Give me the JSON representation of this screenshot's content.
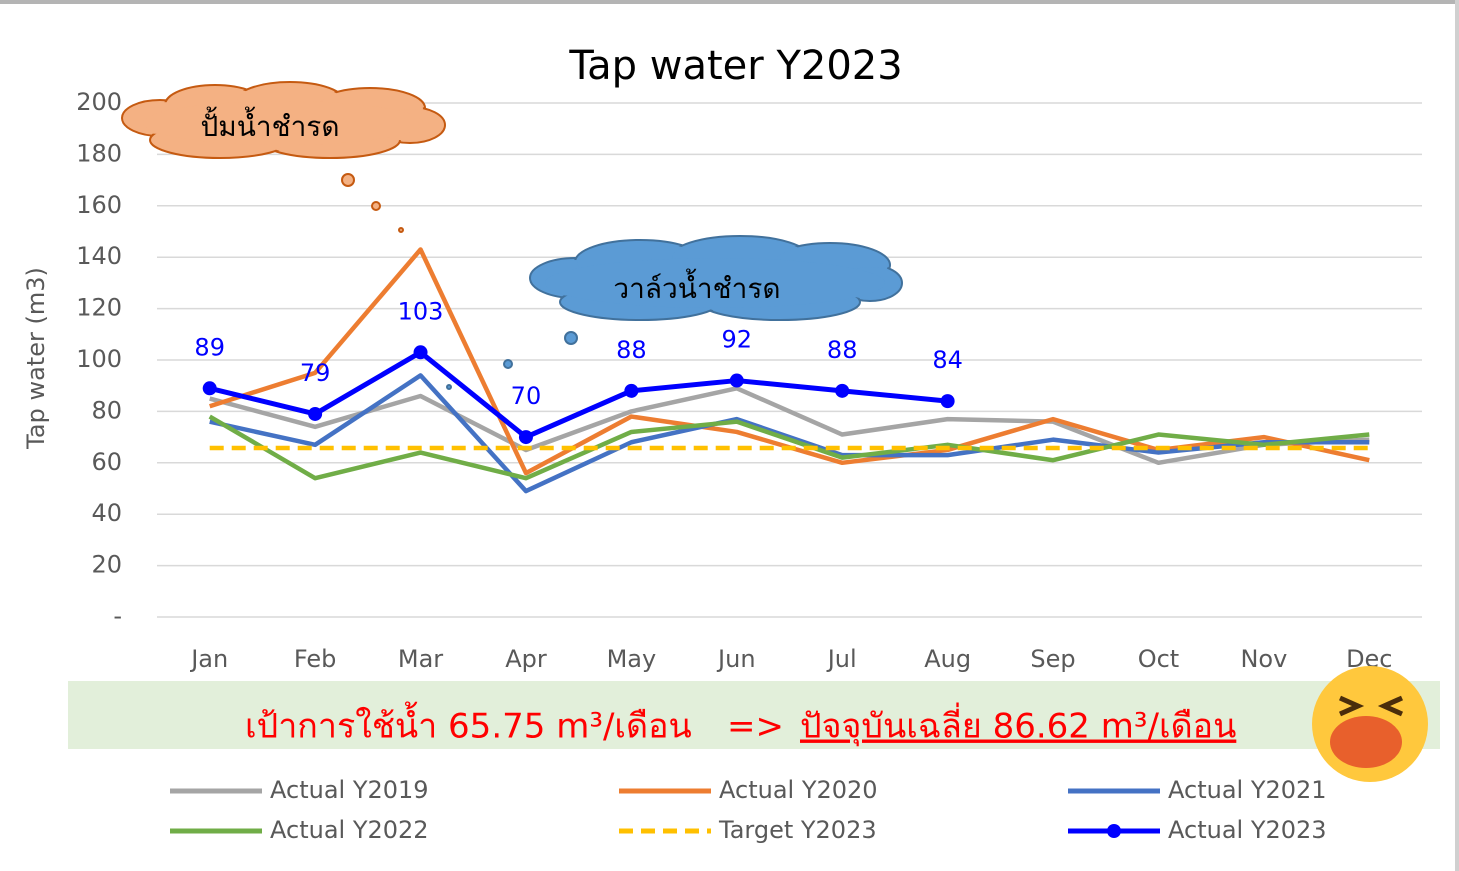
{
  "chart_data": {
    "type": "line",
    "title": "Tap water Y2023",
    "y_label": "Tap water (m3)",
    "categories": [
      "Jan",
      "Feb",
      "Mar",
      "Apr",
      "May",
      "Jun",
      "Jul",
      "Aug",
      "Sep",
      "Oct",
      "Nov",
      "Dec"
    ],
    "ylim": [
      0,
      200
    ],
    "yticks": [
      {
        "value": 0,
        "label": "-"
      },
      20,
      40,
      60,
      80,
      100,
      120,
      140,
      160,
      180,
      200
    ],
    "grid": true,
    "series": [
      {
        "name": "Actual Y2019",
        "color": "#a5a5a5",
        "values": [
          85,
          74,
          86,
          65,
          80,
          89,
          71,
          77,
          76,
          60,
          67,
          69
        ]
      },
      {
        "name": "Actual Y2020",
        "color": "#ed7d31",
        "values": [
          82,
          95,
          143,
          56,
          78,
          72,
          60,
          65,
          77,
          65,
          70,
          61
        ]
      },
      {
        "name": "Actual Y2021",
        "color": "#4472c4",
        "values": [
          76,
          67,
          94,
          49,
          68,
          77,
          63,
          63,
          69,
          64,
          68,
          68
        ]
      },
      {
        "name": "Actual Y2022",
        "color": "#70ad47",
        "values": [
          78,
          54,
          64,
          54,
          72,
          76,
          62,
          67,
          61,
          71,
          67,
          71
        ]
      },
      {
        "name": "Target Y2023",
        "color": "#ffc000",
        "dashed": true,
        "values": [
          65.75,
          65.75,
          65.75,
          65.75,
          65.75,
          65.75,
          65.75,
          65.75,
          65.75,
          65.75,
          65.75,
          65.75
        ]
      },
      {
        "name": "Actual Y2023",
        "color": "#0000ff",
        "markers": true,
        "data_labels": true,
        "values": [
          89,
          79,
          103,
          70,
          88,
          92,
          88,
          84,
          null,
          null,
          null,
          null
        ]
      }
    ],
    "annotations": [
      "ปั้มน้ำชำรด",
      "วาล์วน้ำชำรด"
    ],
    "banner": {
      "left": "เป้าการใช้น้ำ 65.75 m³/เดือน",
      "arrow": "=>",
      "right": "ปัจจุบันเฉลี่ย 86.62 m³/เดือน"
    }
  }
}
